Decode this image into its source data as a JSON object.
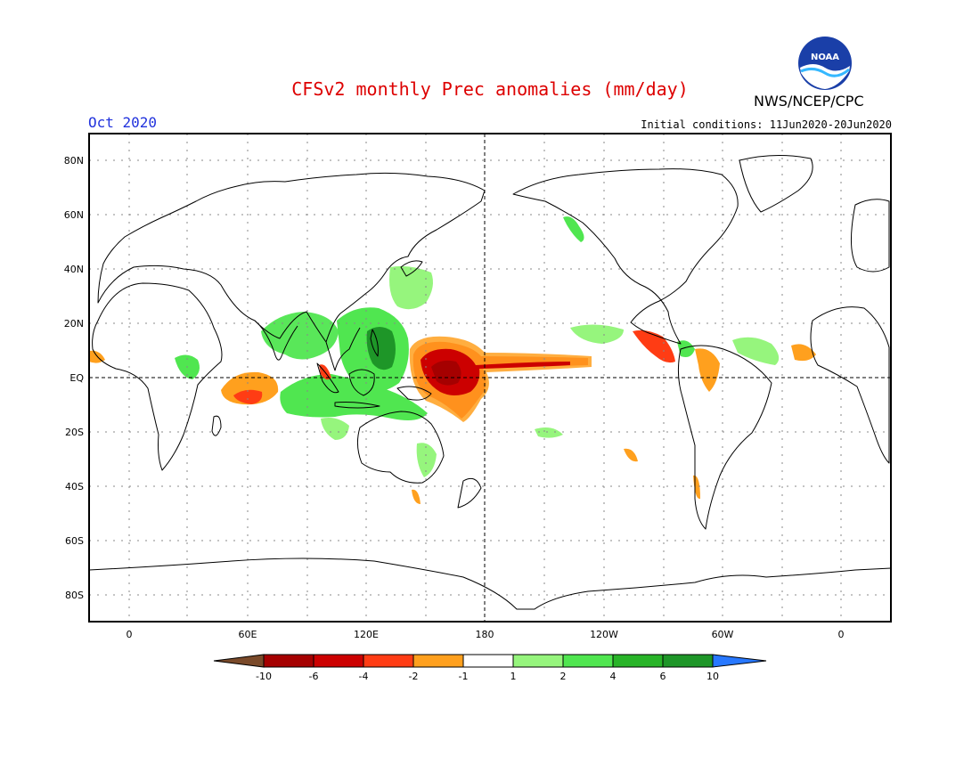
{
  "title": "CFSv2 monthly Prec anomalies (mm/day)",
  "agency": "NWS/NCEP/CPC",
  "logo_text": "NOAA",
  "valid_month": "Oct 2020",
  "initial_conditions": "Initial conditions: 11Jun2020-20Jun2020",
  "lat_labels": [
    "80N",
    "60N",
    "40N",
    "20N",
    "EQ",
    "20S",
    "40S",
    "60S",
    "80S"
  ],
  "lon_labels": [
    "0",
    "60E",
    "120E",
    "180",
    "120W",
    "60W",
    "0"
  ],
  "colorbar": {
    "labels": [
      "-10",
      "-6",
      "-4",
      "-2",
      "-1",
      "1",
      "2",
      "4",
      "6",
      "10"
    ],
    "colors": {
      "lt_minus10": "#7a4a2a",
      "m10_m6": "#a50000",
      "m6_m4": "#cc0000",
      "m4_m2": "#ff3c14",
      "m2_m1": "#ffa01e",
      "m1_p1": "#ffffff",
      "p1_p2": "#96f57d",
      "p2_p4": "#50e650",
      "p4_p6": "#28b428",
      "p6_p10": "#1e9628",
      "gt_10": "#2878ff"
    }
  },
  "map_colors": {
    "frame": "#000000",
    "coast": "#000000",
    "grid": "#888888"
  }
}
